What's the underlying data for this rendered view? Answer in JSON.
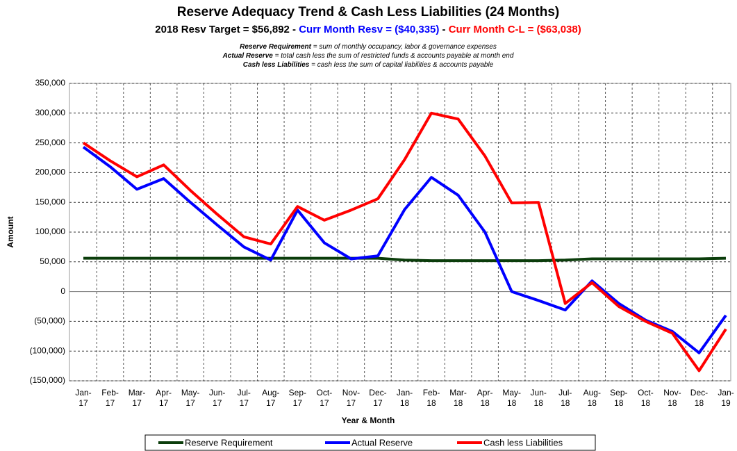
{
  "chart_data": {
    "type": "line",
    "title": "Reserve Adequacy Trend & Cash Less Liabilities (24 Months)",
    "subtitle": [
      {
        "text": "2018 Resv Target = $56,892 - ",
        "color": "#000000"
      },
      {
        "text": "Curr Month Resv = ($40,335)",
        "color": "#0000ff"
      },
      {
        "text": " - ",
        "color": "#000000"
      },
      {
        "text": "Curr Month C-L = ($63,038)",
        "color": "#ff0000"
      }
    ],
    "notes": [
      {
        "term": "Reserve Requirement",
        "definition": " = sum of monthly occupancy, labor & governance expenses"
      },
      {
        "term": "Actual Reserve",
        "definition": " = total cash less the sum of restricted funds & accounts payable at month end"
      },
      {
        "term": "Cash less Liabilities",
        "definition": " = cash less the sum of capital liabilities & accounts payable"
      }
    ],
    "x_label": "Year & Month",
    "y_label": "Amount",
    "categories": [
      "Jan-17",
      "Feb-17",
      "Mar-17",
      "Apr-17",
      "May-17",
      "Jun-17",
      "Jul-17",
      "Aug-17",
      "Sep-17",
      "Oct-17",
      "Nov-17",
      "Dec-17",
      "Jan-18",
      "Feb-18",
      "Mar-18",
      "Apr-18",
      "May-18",
      "Jun-18",
      "Jul-18",
      "Aug-18",
      "Sep-18",
      "Oct-18",
      "Nov-18",
      "Dec-18",
      "Jan-19"
    ],
    "series": [
      {
        "name": "Reserve Requirement",
        "color": "#0b3d0b",
        "values": [
          56000,
          56000,
          56000,
          56000,
          56000,
          56000,
          56000,
          56000,
          56000,
          56000,
          56000,
          56000,
          53000,
          52000,
          52000,
          52000,
          52000,
          52000,
          53000,
          55000,
          55000,
          55000,
          55000,
          55000,
          56000
        ]
      },
      {
        "name": "Actual Reserve",
        "color": "#0000ff",
        "values": [
          243000,
          210000,
          172000,
          190000,
          150000,
          112000,
          75000,
          53000,
          137000,
          82000,
          55000,
          60000,
          138000,
          192000,
          162000,
          100000,
          0,
          -15000,
          -31000,
          18000,
          -20000,
          -48000,
          -67000,
          -103000,
          -40000
        ]
      },
      {
        "name": "Cash less Liabilities",
        "color": "#ff0000",
        "values": [
          250000,
          220000,
          193000,
          213000,
          170000,
          130000,
          92000,
          80000,
          143000,
          120000,
          137000,
          156000,
          222000,
          300000,
          290000,
          228000,
          149000,
          150000,
          -20000,
          15000,
          -25000,
          -50000,
          -70000,
          -133000,
          -63000
        ]
      }
    ],
    "ylim": [
      -150000,
      350000
    ],
    "yticks": [
      {
        "value": -150000,
        "label": "(150,000)"
      },
      {
        "value": -100000,
        "label": "(100,000)"
      },
      {
        "value": -50000,
        "label": "(50,000)"
      },
      0,
      {
        "value": 50000,
        "label": "50,000"
      },
      {
        "value": 100000,
        "label": "100,000"
      },
      {
        "value": 150000,
        "label": "150,000"
      },
      {
        "value": 200000,
        "label": "200,000"
      },
      {
        "value": 250000,
        "label": "250,000"
      },
      {
        "value": 300000,
        "label": "300,000"
      },
      {
        "value": 350000,
        "label": "350,000"
      }
    ],
    "grid": true,
    "legend": "bottom"
  }
}
